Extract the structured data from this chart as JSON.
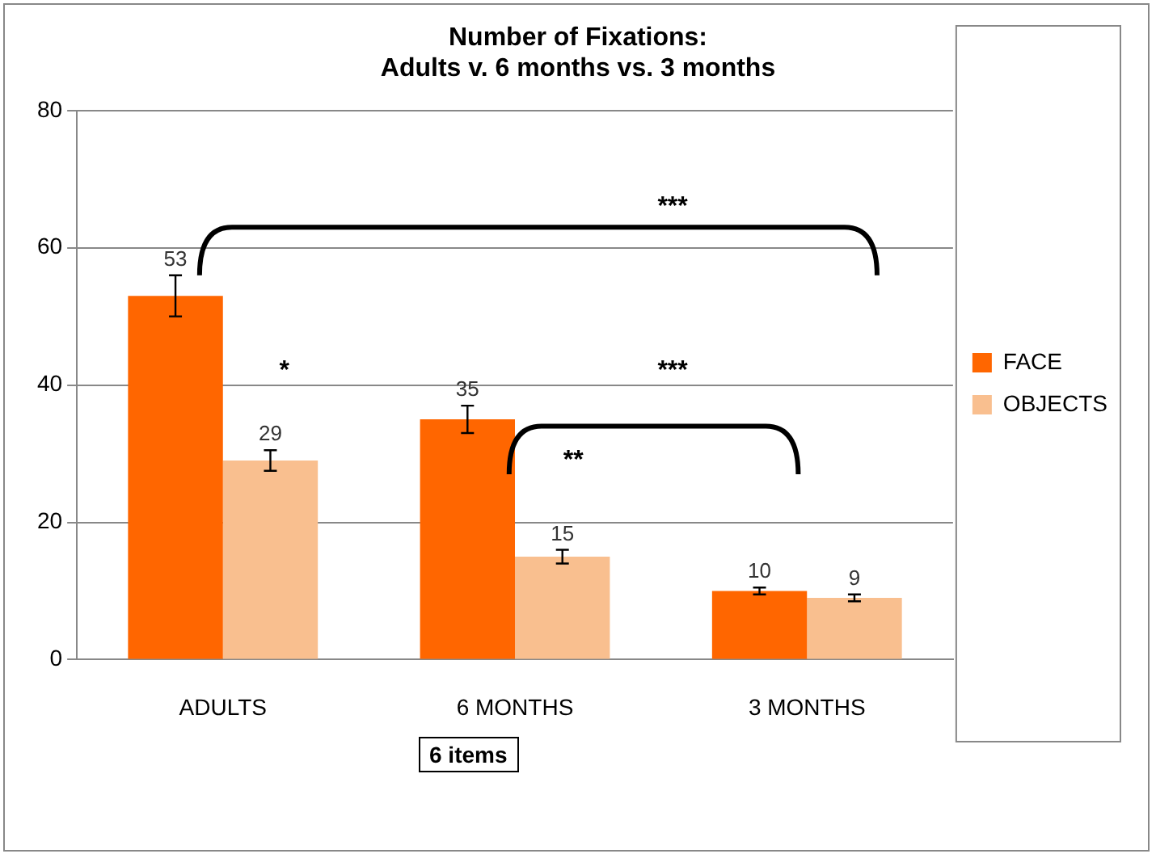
{
  "chart_data": {
    "type": "bar",
    "title": [
      "Number of Fixations:",
      "Adults v. 6 months vs. 3 months"
    ],
    "categories": [
      "ADULTS",
      "6 MONTHS",
      "3 MONTHS"
    ],
    "series": [
      {
        "name": "FACE",
        "color": "#ff6600",
        "values": [
          53,
          35,
          10
        ],
        "errors": [
          3,
          2,
          0.5
        ]
      },
      {
        "name": "OBJECTS",
        "color": "#f9bf8f",
        "values": [
          29,
          15,
          9
        ],
        "errors": [
          1.5,
          1,
          0.5
        ]
      }
    ],
    "ylim": [
      0,
      80
    ],
    "yticks": [
      0,
      20,
      40,
      60,
      80
    ],
    "grid": "y",
    "legend": "right",
    "data_labels": true,
    "annotations": [
      "***",
      "*",
      "***",
      "**",
      "6 items"
    ]
  }
}
